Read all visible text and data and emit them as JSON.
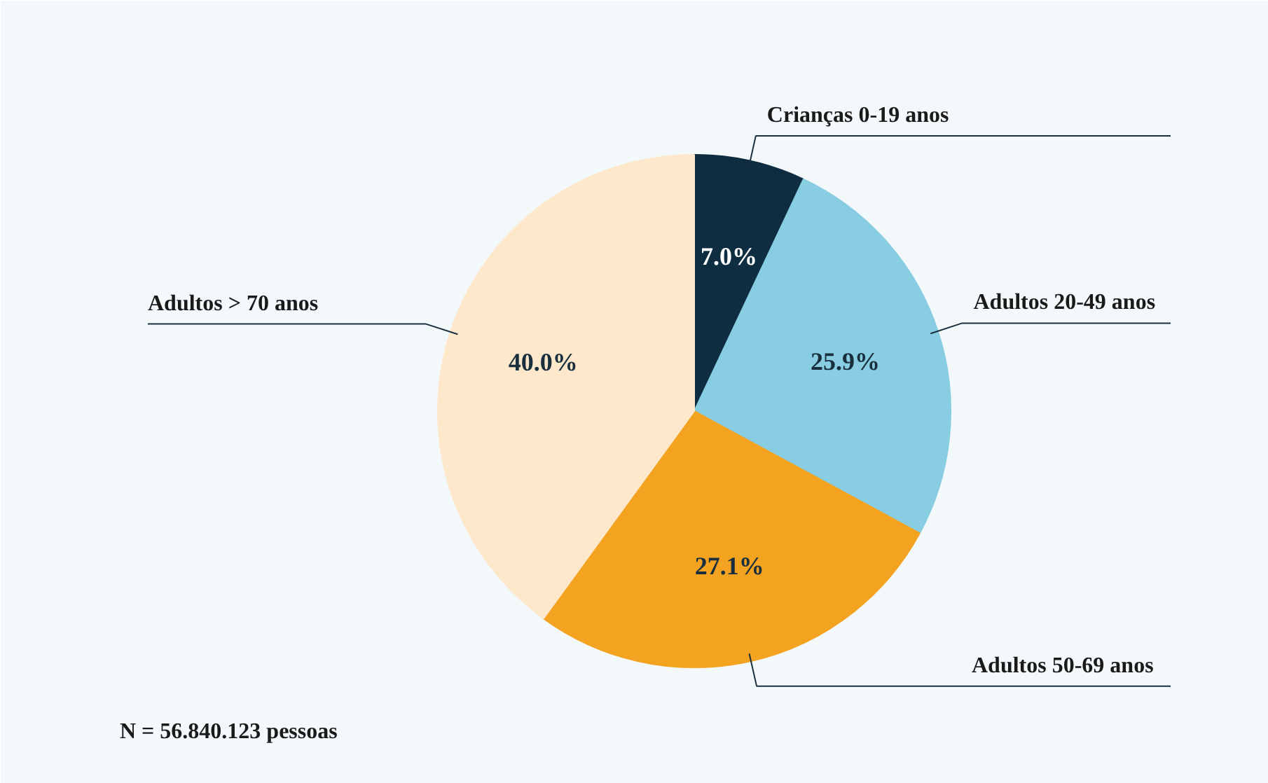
{
  "chart_data": {
    "type": "pie",
    "categories": [
      "Crianças 0-19 anos",
      "Adultos 20-49 anos",
      "Adultos 50-69 anos",
      "Adultos > 70 anos"
    ],
    "values": [
      7.0,
      25.9,
      27.1,
      40.0
    ],
    "colors": [
      "#0f2d40",
      "#88cde2",
      "#f4a321",
      "#fde8cc"
    ],
    "value_labels": [
      "7.0%",
      "25.9%",
      "27.1%",
      "40.0%"
    ],
    "annotations": [
      "N = 56.840.123 pessoas"
    ]
  }
}
